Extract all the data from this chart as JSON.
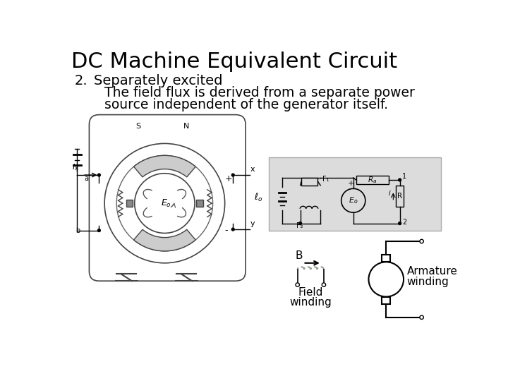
{
  "title": "DC Machine Equivalent Circuit",
  "bg_color": "#ffffff",
  "title_fontsize": 22,
  "number_label": "2.",
  "heading": "Separately excited",
  "body_line1": "The field flux is derived from a separate power",
  "body_line2": "source independent of the generator itself.",
  "text_color": "#000000",
  "heading_fontsize": 14,
  "body_fontsize": 13.5,
  "field_winding_label_line1": "Field",
  "field_winding_label_line2": "winding",
  "armature_winding_label_line1": "Armature",
  "armature_winding_label_line2": "winding",
  "B_label": "B",
  "gray_bg": "#e0e0e0",
  "light_gray": "#cccccc"
}
